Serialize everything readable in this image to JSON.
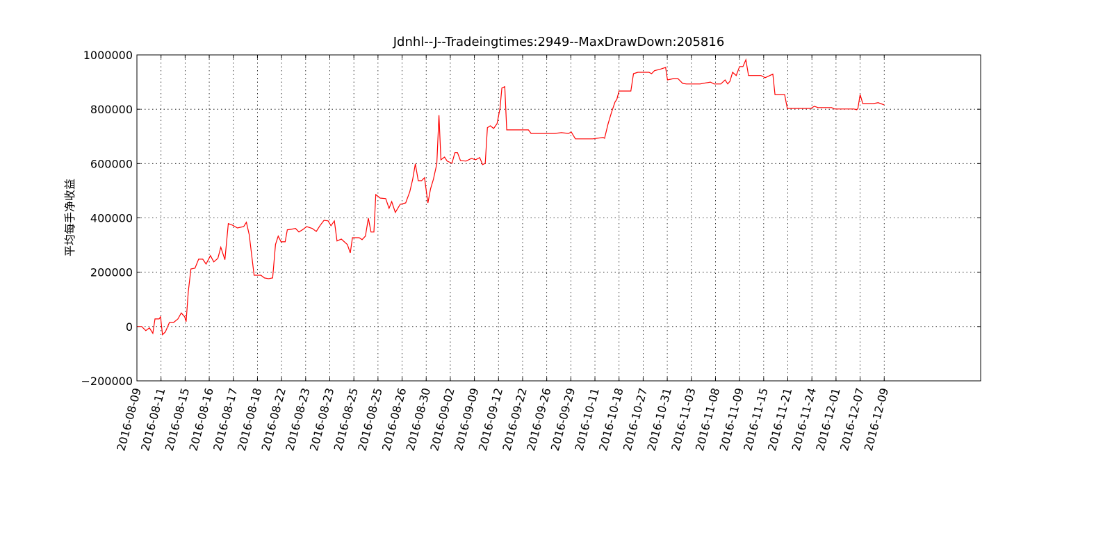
{
  "chart_data": {
    "type": "line",
    "title": "Jdnhl--J--Tradeingtimes:2949--MaxDrawDown:205816",
    "y_label": "平均每手净收益",
    "color": "#ff0000",
    "grid": true,
    "xlim": [
      0,
      3500
    ],
    "ylim": [
      -200000,
      1000000
    ],
    "yticks": [
      {
        "value": -200000,
        "label": "−200000"
      },
      0,
      200000,
      400000,
      600000,
      800000,
      1000000
    ],
    "xticks": [
      {
        "value": 0,
        "label": "2016-08-09"
      },
      {
        "value": 100,
        "label": "2016-08-11"
      },
      {
        "value": 200,
        "label": "2016-08-15"
      },
      {
        "value": 300,
        "label": "2016-08-16"
      },
      {
        "value": 400,
        "label": "2016-08-17"
      },
      {
        "value": 500,
        "label": "2016-08-18"
      },
      {
        "value": 600,
        "label": "2016-08-22"
      },
      {
        "value": 700,
        "label": "2016-08-23"
      },
      {
        "value": 800,
        "label": "2016-08-23"
      },
      {
        "value": 900,
        "label": "2016-08-25"
      },
      {
        "value": 1000,
        "label": "2016-08-25"
      },
      {
        "value": 1100,
        "label": "2016-08-26"
      },
      {
        "value": 1200,
        "label": "2016-08-30"
      },
      {
        "value": 1300,
        "label": "2016-09-02"
      },
      {
        "value": 1400,
        "label": "2016-09-09"
      },
      {
        "value": 1500,
        "label": "2016-09-12"
      },
      {
        "value": 1600,
        "label": "2016-09-22"
      },
      {
        "value": 1700,
        "label": "2016-09-26"
      },
      {
        "value": 1800,
        "label": "2016-09-29"
      },
      {
        "value": 1900,
        "label": "2016-10-11"
      },
      {
        "value": 2000,
        "label": "2016-10-18"
      },
      {
        "value": 2100,
        "label": "2016-10-27"
      },
      {
        "value": 2200,
        "label": "2016-10-31"
      },
      {
        "value": 2300,
        "label": "2016-11-03"
      },
      {
        "value": 2400,
        "label": "2016-11-08"
      },
      {
        "value": 2500,
        "label": "2016-11-09"
      },
      {
        "value": 2600,
        "label": "2016-11-15"
      },
      {
        "value": 2700,
        "label": "2016-11-21"
      },
      {
        "value": 2800,
        "label": "2016-11-24"
      },
      {
        "value": 2900,
        "label": "2016-12-01"
      },
      {
        "value": 3000,
        "label": "2016-12-07"
      },
      {
        "value": 3100,
        "label": "2016-12-09"
      }
    ],
    "x": [
      0,
      20,
      37,
      52,
      66,
      75,
      92,
      98,
      106,
      118,
      135,
      152,
      170,
      184,
      198,
      204,
      213,
      224,
      241,
      256,
      273,
      287,
      305,
      319,
      336,
      348,
      365,
      379,
      397,
      417,
      443,
      454,
      466,
      486,
      514,
      529,
      546,
      563,
      575,
      586,
      598,
      615,
      624,
      641,
      658,
      672,
      690,
      704,
      727,
      744,
      759,
      776,
      793,
      805,
      819,
      830,
      848,
      873,
      885,
      894,
      922,
      934,
      948,
      960,
      971,
      983,
      991,
      1009,
      1032,
      1046,
      1057,
      1072,
      1092,
      1115,
      1132,
      1144,
      1155,
      1167,
      1181,
      1193,
      1207,
      1218,
      1230,
      1244,
      1253,
      1261,
      1276,
      1287,
      1307,
      1319,
      1330,
      1342,
      1365,
      1388,
      1405,
      1422,
      1434,
      1445,
      1454,
      1466,
      1480,
      1494,
      1506,
      1514,
      1526,
      1534,
      1560,
      1624,
      1635,
      1733,
      1761,
      1790,
      1802,
      1819,
      1891,
      1934,
      1940,
      1954,
      1968,
      1983,
      1991,
      2000,
      2049,
      2060,
      2078,
      2124,
      2135,
      2147,
      2170,
      2193,
      2201,
      2227,
      2244,
      2264,
      2279,
      2336,
      2379,
      2394,
      2422,
      2440,
      2451,
      2460,
      2471,
      2486,
      2500,
      2514,
      2526,
      2537,
      2589,
      2606,
      2638,
      2647,
      2687,
      2698,
      2796,
      2810,
      2825,
      2882,
      2894,
      2974,
      2986,
      2991,
      3000,
      3011,
      3055,
      3075,
      3100
    ],
    "values": [
      0,
      0,
      -15000,
      -5000,
      -25000,
      28000,
      28000,
      36000,
      -30000,
      -20000,
      15000,
      15000,
      28000,
      50000,
      36000,
      18000,
      128000,
      212000,
      215000,
      248000,
      248000,
      230000,
      261000,
      238000,
      251000,
      292000,
      246000,
      379000,
      373000,
      363000,
      368000,
      384000,
      338000,
      189000,
      189000,
      179000,
      176000,
      179000,
      302000,
      333000,
      312000,
      312000,
      356000,
      358000,
      361000,
      348000,
      358000,
      368000,
      361000,
      350000,
      371000,
      391000,
      389000,
      371000,
      389000,
      315000,
      322000,
      302000,
      271000,
      327000,
      327000,
      320000,
      333000,
      399000,
      348000,
      348000,
      486000,
      473000,
      471000,
      435000,
      460000,
      420000,
      450000,
      455000,
      496000,
      542000,
      599000,
      537000,
      537000,
      548000,
      455000,
      507000,
      542000,
      599000,
      778000,
      614000,
      624000,
      609000,
      601000,
      640000,
      640000,
      611000,
      609000,
      619000,
      614000,
      622000,
      596000,
      601000,
      732000,
      739000,
      729000,
      747000,
      803000,
      878000,
      883000,
      724000,
      724000,
      724000,
      711000,
      711000,
      714000,
      711000,
      716000,
      691000,
      691000,
      696000,
      693000,
      745000,
      786000,
      826000,
      837000,
      867000,
      867000,
      931000,
      936000,
      936000,
      931000,
      942000,
      947000,
      954000,
      908000,
      913000,
      913000,
      895000,
      893000,
      893000,
      900000,
      893000,
      893000,
      908000,
      893000,
      903000,
      936000,
      924000,
      957000,
      957000,
      982000,
      924000,
      924000,
      916000,
      929000,
      854000,
      854000,
      803000,
      803000,
      811000,
      806000,
      806000,
      801000,
      801000,
      798000,
      803000,
      854000,
      821000,
      821000,
      824000,
      816000
    ]
  }
}
